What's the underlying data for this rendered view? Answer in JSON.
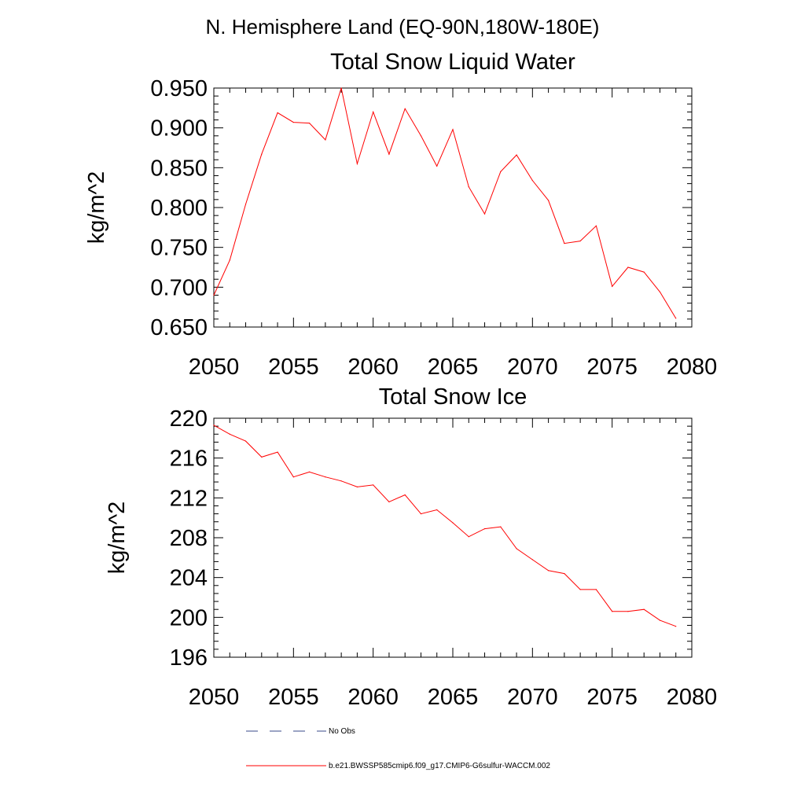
{
  "figure": {
    "title": "N. Hemisphere Land (EQ-90N,180W-180E)"
  },
  "chart_data": [
    {
      "type": "line",
      "title": "Total Snow Liquid Water",
      "xlabel": "",
      "ylabel": "kg/m^2",
      "xlim": [
        2050,
        2080
      ],
      "ylim": [
        0.65,
        0.95
      ],
      "x_ticks": [
        2050,
        2055,
        2060,
        2065,
        2070,
        2075,
        2080
      ],
      "y_ticks": [
        0.65,
        0.7,
        0.75,
        0.8,
        0.85,
        0.9,
        0.95
      ],
      "y_tick_labels": [
        "0.650",
        "0.700",
        "0.750",
        "0.800",
        "0.850",
        "0.900",
        "0.950"
      ],
      "grid": false,
      "x": [
        2050,
        2051,
        2052,
        2053,
        2054,
        2055,
        2056,
        2057,
        2058,
        2059,
        2060,
        2061,
        2062,
        2063,
        2064,
        2065,
        2066,
        2067,
        2068,
        2069,
        2070,
        2071,
        2072,
        2073,
        2074,
        2075,
        2076,
        2077,
        2078,
        2079
      ],
      "series": [
        {
          "color": "#ff0000",
          "values": [
            0.69,
            0.734,
            0.804,
            0.867,
            0.919,
            0.907,
            0.906,
            0.885,
            0.95,
            0.855,
            0.92,
            0.867,
            0.924,
            0.89,
            0.852,
            0.898,
            0.826,
            0.792,
            0.845,
            0.866,
            0.834,
            0.809,
            0.755,
            0.758,
            0.777,
            0.701,
            0.725,
            0.719,
            0.694,
            0.661
          ]
        }
      ]
    },
    {
      "type": "line",
      "title": "Total Snow Ice",
      "xlabel": "",
      "ylabel": "kg/m^2",
      "xlim": [
        2050,
        2080
      ],
      "ylim": [
        196,
        220
      ],
      "x_ticks": [
        2050,
        2055,
        2060,
        2065,
        2070,
        2075,
        2080
      ],
      "y_ticks": [
        196,
        200,
        204,
        208,
        212,
        216,
        220
      ],
      "y_tick_labels": [
        "196",
        "200",
        "204",
        "208",
        "212",
        "216",
        "220"
      ],
      "grid": false,
      "x": [
        2050,
        2051,
        2052,
        2053,
        2054,
        2055,
        2056,
        2057,
        2058,
        2059,
        2060,
        2061,
        2062,
        2063,
        2064,
        2065,
        2066,
        2067,
        2068,
        2069,
        2070,
        2071,
        2072,
        2073,
        2074,
        2075,
        2076,
        2077,
        2078,
        2079
      ],
      "series": [
        {
          "color": "#ff0000",
          "values": [
            219.3,
            218.4,
            217.7,
            216.1,
            216.6,
            214.1,
            214.6,
            214.1,
            213.7,
            213.1,
            213.3,
            211.6,
            212.3,
            210.4,
            210.8,
            209.5,
            208.1,
            208.9,
            209.1,
            206.9,
            205.8,
            204.7,
            204.4,
            202.8,
            202.8,
            200.6,
            200.6,
            200.8,
            199.7,
            199.1
          ]
        }
      ]
    }
  ],
  "legend": {
    "placement": "bottom",
    "entries": [
      {
        "label": "No Obs",
        "color": "#3a4a8a",
        "dash": "dashed"
      },
      {
        "label": "b.e21.BWSSP585cmip6.f09_g17.CMIP6-G6sulfur-WACCM.002",
        "color": "#ff0000",
        "dash": "solid"
      }
    ]
  }
}
